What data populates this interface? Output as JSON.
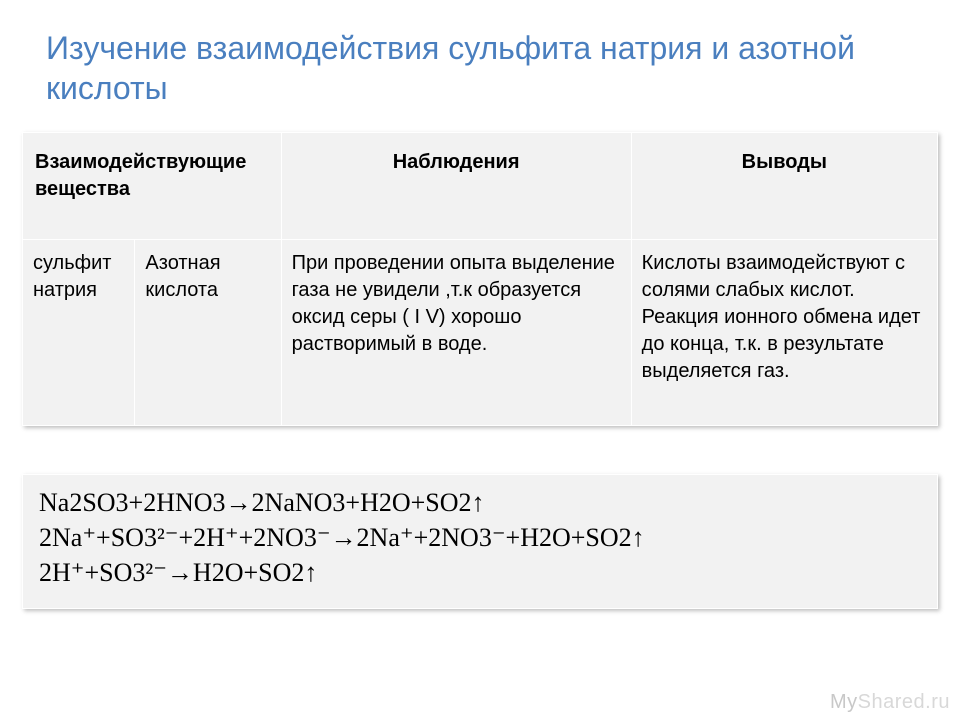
{
  "title": "Изучение взаимодействия сульфита натрия и азотной кислоты",
  "table": {
    "headers": [
      "Взаимодействующие вещества",
      "Наблюдения",
      "Выводы"
    ],
    "row": {
      "substance1": "сульфит натрия",
      "substance2": "Азотная кислота",
      "observation": "При проведении опыта выделение газа не увидели ,т.к  образуется оксид серы ( I V) хорошо растворимый в воде.",
      "conclusion": "Кислоты взаимодействуют с солями слабых кислот. Реакция ионного обмена идет до конца, т.к. в результате выделяется газ."
    }
  },
  "equations": [
    "Na2SO3+2HNO3→2NaNO3+H2O+SO2↑",
    "2Na⁺+SO3²⁻+2H⁺+2NO3⁻→2Na⁺+2NO3⁻+H2O+SO2↑",
    "2H⁺+SO3²⁻→H2O+SO2↑"
  ],
  "watermark": {
    "left": "My",
    "right": "Shared.ru"
  },
  "colors": {
    "title": "#4a7fbf",
    "cell_bg": "#f2f2f2",
    "cell_border": "#ffffff",
    "page_bg": "#ffffff",
    "watermark_light": "#d8d8d8",
    "watermark_dark": "#c8c8c8"
  }
}
